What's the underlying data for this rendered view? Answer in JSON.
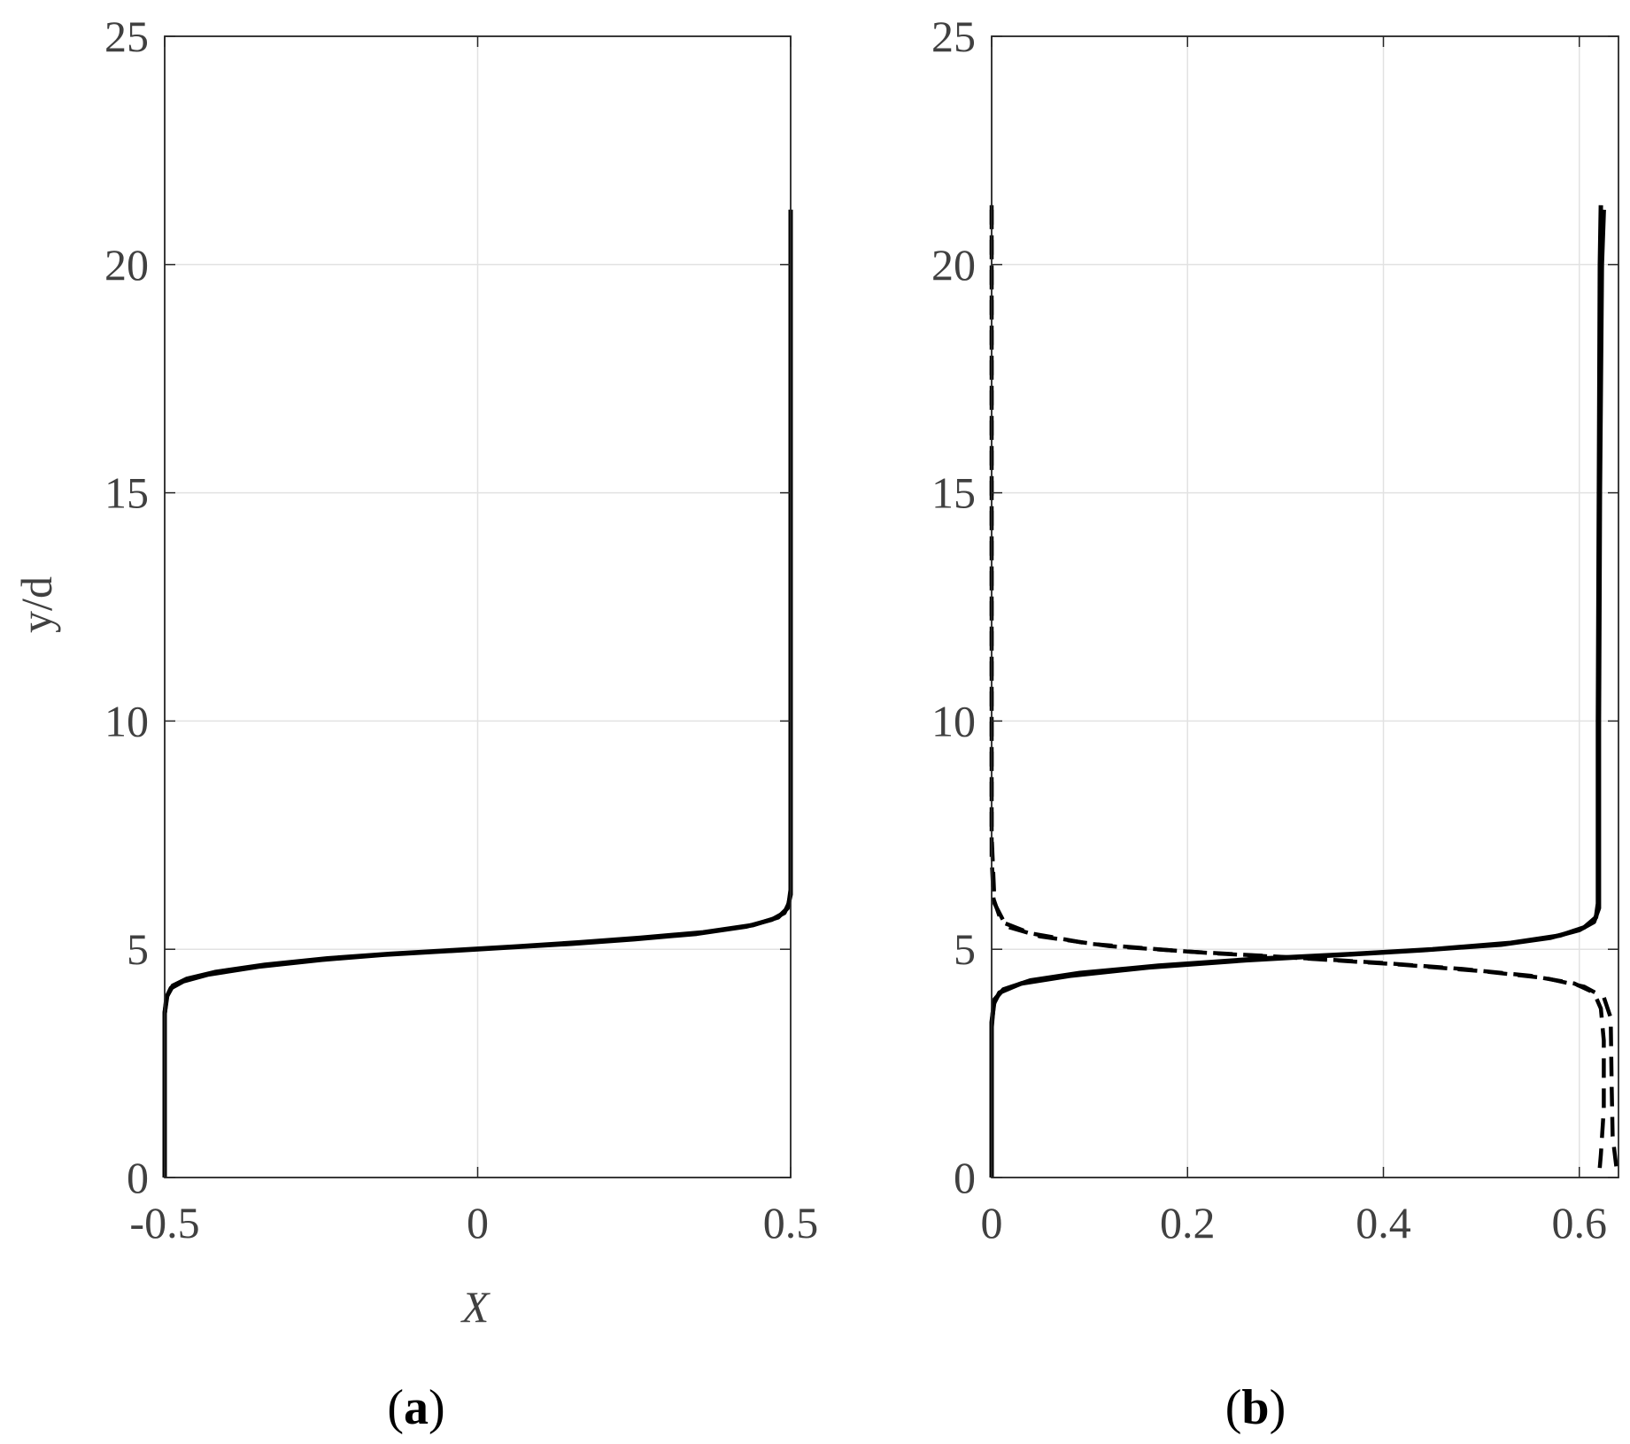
{
  "chart_data": [
    {
      "type": "line",
      "panel_label": "(a)",
      "panel_letter": "a",
      "xlabel": "X",
      "ylabel": "y/d",
      "xlim": [
        -0.5,
        0.5
      ],
      "ylim": [
        0,
        25
      ],
      "xticks": [
        -0.5,
        0,
        0.5
      ],
      "xtick_labels": [
        "-0.5",
        "0",
        "0.5"
      ],
      "yticks": [
        0,
        5,
        10,
        15,
        20,
        25
      ],
      "ytick_labels": [
        "0",
        "5",
        "10",
        "15",
        "20",
        "25"
      ],
      "grid": true,
      "series": [
        {
          "style": "solid",
          "color": "#000000",
          "points": [
            [
              -0.5,
              0
            ],
            [
              -0.5,
              2
            ],
            [
              -0.5,
              3.6
            ],
            [
              -0.497,
              3.95
            ],
            [
              -0.49,
              4.15
            ],
            [
              -0.47,
              4.3
            ],
            [
              -0.43,
              4.45
            ],
            [
              -0.35,
              4.62
            ],
            [
              -0.25,
              4.77
            ],
            [
              -0.15,
              4.88
            ],
            [
              -0.05,
              4.96
            ],
            [
              0.0,
              5.0
            ],
            [
              0.05,
              5.04
            ],
            [
              0.15,
              5.12
            ],
            [
              0.25,
              5.22
            ],
            [
              0.35,
              5.34
            ],
            [
              0.43,
              5.5
            ],
            [
              0.47,
              5.65
            ],
            [
              0.49,
              5.8
            ],
            [
              0.497,
              6.0
            ],
            [
              0.5,
              6.3
            ],
            [
              0.5,
              10
            ],
            [
              0.5,
              15
            ],
            [
              0.5,
              20
            ],
            [
              0.5,
              21.2
            ]
          ]
        },
        {
          "style": "solid",
          "color": "#000000",
          "points": [
            [
              -0.5,
              0
            ],
            [
              -0.5,
              3.6
            ],
            [
              -0.496,
              3.98
            ],
            [
              -0.487,
              4.2
            ],
            [
              -0.465,
              4.35
            ],
            [
              -0.42,
              4.5
            ],
            [
              -0.34,
              4.66
            ],
            [
              -0.24,
              4.8
            ],
            [
              -0.14,
              4.9
            ],
            [
              -0.04,
              4.98
            ],
            [
              0.06,
              5.06
            ],
            [
              0.16,
              5.15
            ],
            [
              0.26,
              5.25
            ],
            [
              0.36,
              5.37
            ],
            [
              0.44,
              5.53
            ],
            [
              0.48,
              5.7
            ],
            [
              0.495,
              5.9
            ],
            [
              0.5,
              6.2
            ],
            [
              0.5,
              21.2
            ]
          ]
        }
      ]
    },
    {
      "type": "line",
      "panel_label": "(b)",
      "panel_letter": "b",
      "xlabel": "",
      "ylabel": "",
      "xlim": [
        0,
        0.64
      ],
      "ylim": [
        0,
        25
      ],
      "xticks": [
        0,
        0.2,
        0.4,
        0.6
      ],
      "xtick_labels": [
        "0",
        "0.2",
        "0.4",
        "0.6"
      ],
      "yticks": [
        0,
        5,
        10,
        15,
        20,
        25
      ],
      "ytick_labels": [
        "0",
        "5",
        "10",
        "15",
        "20",
        "25"
      ],
      "grid": true,
      "series": [
        {
          "style": "solid",
          "color": "#000000",
          "points": [
            [
              0.0,
              0
            ],
            [
              0.0,
              3.3
            ],
            [
              0.002,
              3.8
            ],
            [
              0.008,
              4.05
            ],
            [
              0.03,
              4.25
            ],
            [
              0.08,
              4.42
            ],
            [
              0.16,
              4.6
            ],
            [
              0.26,
              4.76
            ],
            [
              0.36,
              4.88
            ],
            [
              0.44,
              4.98
            ],
            [
              0.52,
              5.1
            ],
            [
              0.57,
              5.25
            ],
            [
              0.6,
              5.42
            ],
            [
              0.615,
              5.6
            ],
            [
              0.62,
              5.9
            ],
            [
              0.62,
              10
            ],
            [
              0.621,
              15
            ],
            [
              0.623,
              20
            ],
            [
              0.625,
              21.2
            ]
          ]
        },
        {
          "style": "solid",
          "color": "#000000",
          "points": [
            [
              0.0,
              0
            ],
            [
              0.0,
              3.4
            ],
            [
              0.003,
              3.9
            ],
            [
              0.012,
              4.12
            ],
            [
              0.04,
              4.32
            ],
            [
              0.09,
              4.48
            ],
            [
              0.17,
              4.64
            ],
            [
              0.27,
              4.79
            ],
            [
              0.37,
              4.9
            ],
            [
              0.45,
              5.0
            ],
            [
              0.53,
              5.14
            ],
            [
              0.58,
              5.3
            ],
            [
              0.605,
              5.48
            ],
            [
              0.617,
              5.7
            ],
            [
              0.619,
              6.0
            ],
            [
              0.619,
              10
            ],
            [
              0.62,
              15
            ],
            [
              0.621,
              20
            ],
            [
              0.622,
              21.3
            ]
          ]
        },
        {
          "style": "dashed",
          "color": "#000000",
          "points": [
            [
              0.0,
              21.3
            ],
            [
              0.0,
              20
            ],
            [
              0.0,
              15
            ],
            [
              0.0,
              10
            ],
            [
              0.0,
              7
            ],
            [
              0.002,
              6.1
            ],
            [
              0.01,
              5.6
            ],
            [
              0.04,
              5.35
            ],
            [
              0.1,
              5.12
            ],
            [
              0.2,
              4.95
            ],
            [
              0.3,
              4.83
            ],
            [
              0.4,
              4.7
            ],
            [
              0.48,
              4.57
            ],
            [
              0.55,
              4.42
            ],
            [
              0.595,
              4.25
            ],
            [
              0.615,
              4.05
            ],
            [
              0.622,
              3.7
            ],
            [
              0.625,
              3.0
            ],
            [
              0.625,
              1.5
            ],
            [
              0.622,
              0.5
            ],
            [
              0.62,
              0
            ]
          ]
        },
        {
          "style": "dashed",
          "color": "#000000",
          "points": [
            [
              0.0,
              21.2
            ],
            [
              0.0,
              15
            ],
            [
              0.0,
              7.5
            ],
            [
              0.003,
              6.0
            ],
            [
              0.015,
              5.5
            ],
            [
              0.05,
              5.28
            ],
            [
              0.12,
              5.07
            ],
            [
              0.22,
              4.92
            ],
            [
              0.32,
              4.8
            ],
            [
              0.42,
              4.66
            ],
            [
              0.5,
              4.52
            ],
            [
              0.565,
              4.37
            ],
            [
              0.605,
              4.18
            ],
            [
              0.625,
              3.95
            ],
            [
              0.632,
              3.5
            ],
            [
              0.633,
              2.0
            ],
            [
              0.634,
              0.9
            ],
            [
              0.638,
              0.2
            ]
          ]
        }
      ]
    }
  ]
}
